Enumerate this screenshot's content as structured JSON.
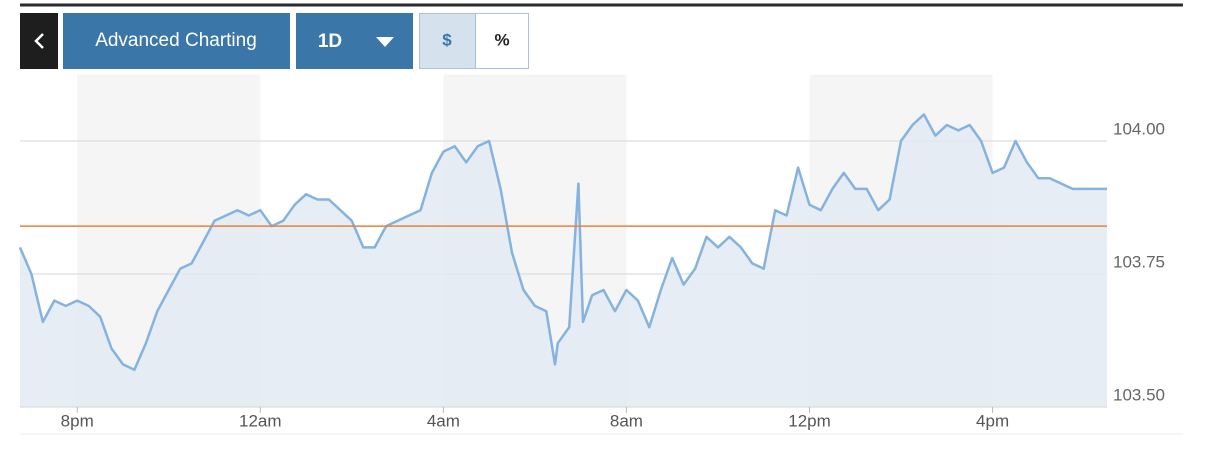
{
  "toolbar": {
    "title_button": "Advanced Charting",
    "range_button": "1D",
    "dollar_button": "$",
    "percent_button": "%"
  },
  "chart_data": {
    "type": "line",
    "x": [
      18.75,
      19.0,
      19.25,
      19.5,
      19.75,
      20.0,
      20.25,
      20.5,
      20.75,
      21.0,
      21.25,
      21.5,
      21.75,
      22.0,
      22.25,
      22.5,
      22.75,
      23.0,
      23.25,
      23.5,
      23.75,
      24.0,
      24.25,
      24.5,
      24.75,
      25.0,
      25.25,
      25.5,
      25.75,
      26.0,
      26.25,
      26.5,
      26.75,
      27.0,
      27.25,
      27.5,
      27.75,
      28.0,
      28.25,
      28.5,
      28.75,
      29.0,
      29.25,
      29.5,
      29.75,
      30.0,
      30.25,
      30.44,
      30.5,
      30.75,
      30.95,
      31.05,
      31.25,
      31.5,
      31.75,
      32.0,
      32.25,
      32.5,
      32.75,
      33.0,
      33.25,
      33.5,
      33.75,
      34.0,
      34.25,
      34.5,
      34.75,
      35.0,
      35.25,
      35.5,
      35.75,
      36.0,
      36.25,
      36.5,
      36.75,
      37.0,
      37.25,
      37.5,
      37.75,
      38.0,
      38.25,
      38.5,
      38.75,
      39.0,
      39.25,
      39.5,
      39.75,
      40.0,
      40.25,
      40.5,
      40.75,
      41.0,
      41.25,
      41.5,
      41.75,
      42.0,
      42.25,
      42.5
    ],
    "series": [
      {
        "color": "#85b3e0",
        "fill_color": "#e2eaf2",
        "values": [
          103.8,
          103.75,
          103.66,
          103.7,
          103.69,
          103.7,
          103.69,
          103.67,
          103.61,
          103.58,
          103.57,
          103.62,
          103.68,
          103.72,
          103.76,
          103.77,
          103.81,
          103.85,
          103.86,
          103.87,
          103.86,
          103.87,
          103.84,
          103.85,
          103.88,
          103.9,
          103.89,
          103.89,
          103.87,
          103.85,
          103.8,
          103.8,
          103.84,
          103.85,
          103.86,
          103.87,
          103.94,
          103.98,
          103.99,
          103.96,
          103.99,
          104.0,
          103.91,
          103.79,
          103.72,
          103.69,
          103.68,
          103.58,
          103.62,
          103.65,
          103.92,
          103.66,
          103.71,
          103.72,
          103.68,
          103.72,
          103.7,
          103.65,
          103.72,
          103.78,
          103.73,
          103.76,
          103.82,
          103.8,
          103.82,
          103.8,
          103.77,
          103.76,
          103.87,
          103.86,
          103.95,
          103.88,
          103.87,
          103.91,
          103.94,
          103.91,
          103.91,
          103.87,
          103.89,
          104.0,
          104.03,
          104.05,
          104.01,
          104.03,
          104.02,
          104.03,
          104.0,
          103.94,
          103.95,
          104.0,
          103.96,
          103.93,
          103.93,
          103.92,
          103.91,
          103.91,
          103.91,
          103.91
        ]
      }
    ],
    "reference_line": {
      "value": 103.84,
      "color": "#e8823a"
    },
    "xlim": [
      18.75,
      42.5
    ],
    "xticks": [
      {
        "value": 20,
        "label": "8pm"
      },
      {
        "value": 24,
        "label": "12am"
      },
      {
        "value": 28,
        "label": "4am"
      },
      {
        "value": 32,
        "label": "8am"
      },
      {
        "value": 36,
        "label": "12pm"
      },
      {
        "value": 40,
        "label": "4pm"
      }
    ],
    "ylim": [
      103.5,
      104.125
    ],
    "yticks": [
      {
        "value": 103.5,
        "label": "103.50"
      },
      {
        "value": 103.75,
        "label": "103.75"
      },
      {
        "value": 104,
        "label": "104.00"
      }
    ],
    "band_color": "#f5f5f6",
    "grid": true
  }
}
